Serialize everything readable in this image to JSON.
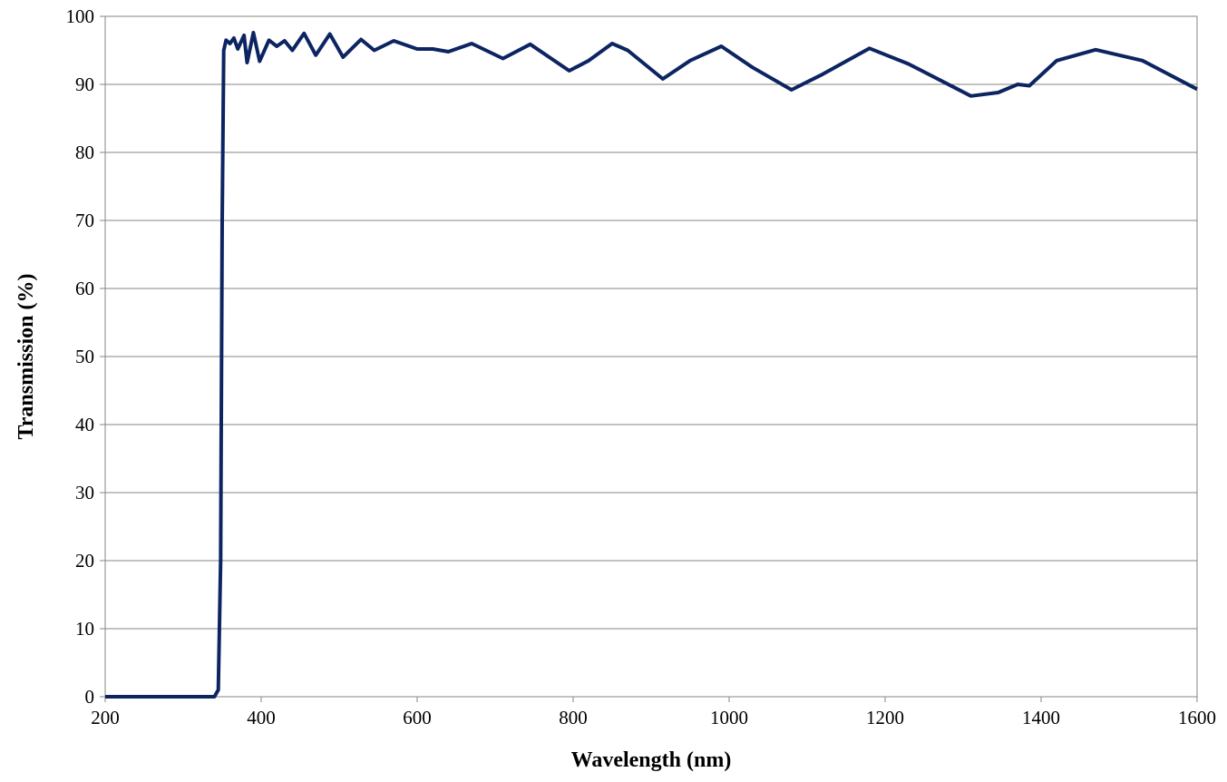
{
  "chart_data": {
    "type": "line",
    "x_label": "Wavelength (nm)",
    "y_label": "Transmission (%)",
    "x": [
      200,
      340,
      345,
      348,
      350,
      352,
      355,
      360,
      365,
      370,
      378,
      382,
      390,
      398,
      410,
      420,
      430,
      440,
      455,
      470,
      488,
      505,
      528,
      545,
      570,
      600,
      620,
      640,
      670,
      710,
      745,
      795,
      820,
      850,
      870,
      915,
      950,
      990,
      1030,
      1080,
      1120,
      1180,
      1230,
      1310,
      1345,
      1370,
      1385,
      1420,
      1470,
      1530,
      1600
    ],
    "series": [
      {
        "color": "#0c2461",
        "values": [
          0,
          0,
          1,
          20,
          70,
          95,
          96.5,
          96,
          96.8,
          95.2,
          97.2,
          93.2,
          97.6,
          93.4,
          96.5,
          95.6,
          96.4,
          95,
          97.5,
          94.3,
          97.4,
          94,
          96.6,
          95,
          96.4,
          95.2,
          95.2,
          94.8,
          96,
          93.8,
          95.9,
          92,
          93.5,
          96,
          95,
          90.8,
          93.5,
          95.6,
          92.5,
          89.2,
          91.5,
          95.3,
          93,
          88.3,
          88.8,
          90,
          89.8,
          93.5,
          95.1,
          93.5,
          89.3
        ]
      }
    ],
    "xlim": [
      200,
      1600
    ],
    "xticks": [
      200,
      400,
      600,
      800,
      1000,
      1200,
      1400,
      1600
    ],
    "ylim": [
      0,
      100
    ],
    "yticks": [
      0,
      10,
      20,
      30,
      40,
      50,
      60,
      70,
      80,
      90,
      100
    ],
    "grid": true
  }
}
